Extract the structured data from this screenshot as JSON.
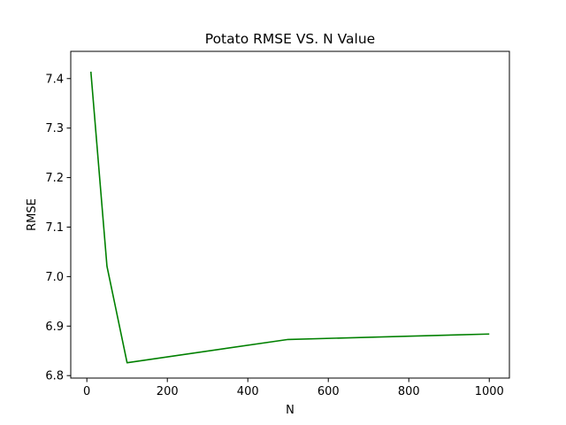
{
  "chart_data": {
    "type": "line",
    "title": "Potato RMSE VS. N Value",
    "xlabel": "N",
    "ylabel": "RMSE",
    "xlim": [
      -40,
      1050
    ],
    "ylim": [
      6.795,
      7.455
    ],
    "xticks": [
      0,
      200,
      400,
      600,
      800,
      1000
    ],
    "yticks": [
      6.8,
      6.9,
      7.0,
      7.1,
      7.2,
      7.3,
      7.4
    ],
    "ytick_labels": [
      "6.8",
      "6.9",
      "7.0",
      "7.1",
      "7.2",
      "7.3",
      "7.4"
    ],
    "grid": false,
    "series": [
      {
        "color": "#008000",
        "x": [
          10,
          50,
          100,
          500,
          1000
        ],
        "y": [
          7.414,
          7.021,
          6.826,
          6.873,
          6.884
        ]
      }
    ]
  }
}
